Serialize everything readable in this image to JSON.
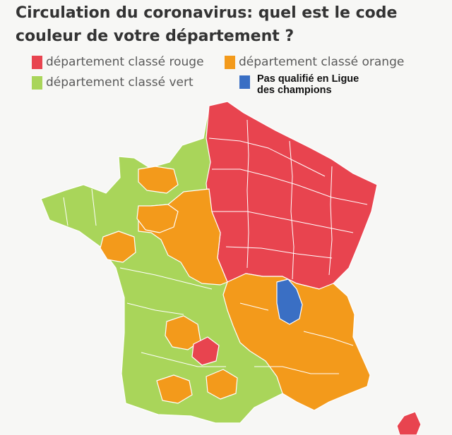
{
  "title": {
    "line1": "Circulation du coronavirus: quel est le code",
    "line2": "couleur de votre département ?"
  },
  "legend": [
    {
      "key": "red",
      "label": "département classé rouge",
      "color": "#e8444f"
    },
    {
      "key": "orange",
      "label": "département classé orange",
      "color": "#f39a1b"
    },
    {
      "key": "green",
      "label": "département classé vert",
      "color": "#a9d55a"
    },
    {
      "key": "blue",
      "label_line1": "Pas qualifié en Ligue",
      "label_line2": "des champions",
      "color": "#3a6fc4"
    }
  ],
  "map": {
    "colors": {
      "red": "#e8444f",
      "orange": "#f39a1b",
      "green": "#a9d55a",
      "blue": "#3a6fc4",
      "border": "#ffffff"
    }
  }
}
